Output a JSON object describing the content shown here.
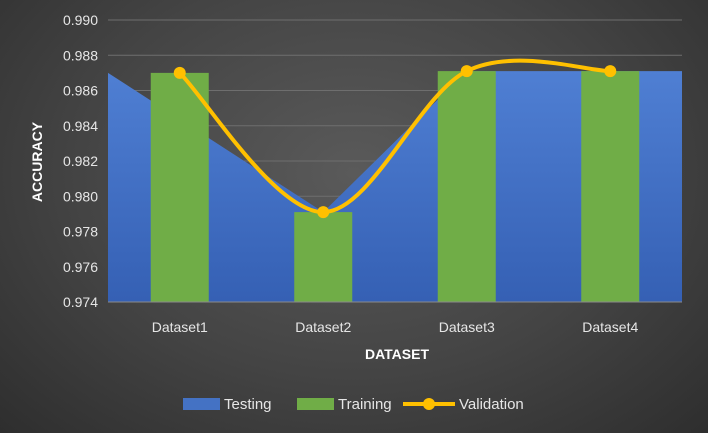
{
  "chart_data": {
    "type": "bar",
    "categories": [
      "Dataset1",
      "Dataset2",
      "Dataset3",
      "Dataset4"
    ],
    "series": [
      {
        "name": "Testing",
        "chart_type": "area",
        "color": "#4472C4",
        "values": [
          0.987,
          0.9791,
          0.9871,
          0.9871
        ]
      },
      {
        "name": "Training",
        "chart_type": "bar",
        "color": "#70AD47",
        "values": [
          0.987,
          0.9791,
          0.9871,
          0.9871
        ]
      },
      {
        "name": "Validation",
        "chart_type": "line",
        "smooth": true,
        "marker": "circle",
        "color": "#FFC000",
        "values": [
          0.987,
          0.9791,
          0.9871,
          0.9871
        ]
      }
    ],
    "title": "",
    "xlabel": "DATASET",
    "ylabel": "ACCURACY",
    "ylim": [
      0.974,
      0.99
    ],
    "yticks": [
      "0.974",
      "0.976",
      "0.978",
      "0.980",
      "0.982",
      "0.984",
      "0.986",
      "0.988",
      "0.990"
    ],
    "grid": true,
    "legend_position": "bottom"
  }
}
